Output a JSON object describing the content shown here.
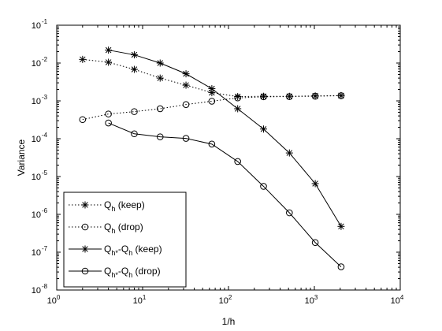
{
  "chart_data": {
    "type": "line",
    "xscale": "log",
    "yscale": "log",
    "xlim": [
      1,
      10000
    ],
    "ylim": [
      1e-08,
      0.1
    ],
    "xlabel": "1/h",
    "ylabel": "Variance",
    "grid": false,
    "legend_position": "bottom-left",
    "x_ticks": [
      {
        "base": "10",
        "exp": "0",
        "value": 1
      },
      {
        "base": "10",
        "exp": "1",
        "value": 10
      },
      {
        "base": "10",
        "exp": "2",
        "value": 100
      },
      {
        "base": "10",
        "exp": "3",
        "value": 1000
      },
      {
        "base": "10",
        "exp": "4",
        "value": 10000
      }
    ],
    "y_ticks": [
      {
        "base": "10",
        "exp": "-8",
        "value": 1e-08
      },
      {
        "base": "10",
        "exp": "-7",
        "value": 1e-07
      },
      {
        "base": "10",
        "exp": "-6",
        "value": 1e-06
      },
      {
        "base": "10",
        "exp": "-5",
        "value": 1e-05
      },
      {
        "base": "10",
        "exp": "-4",
        "value": 0.0001
      },
      {
        "base": "10",
        "exp": "-3",
        "value": 0.001
      },
      {
        "base": "10",
        "exp": "-2",
        "value": 0.01
      },
      {
        "base": "10",
        "exp": "-1",
        "value": 0.1
      }
    ],
    "series": [
      {
        "name": "Q_h (keep)",
        "legend_main": "Q",
        "legend_sub": "h",
        "legend_tail": " (keep)",
        "line": "dotted",
        "marker": "star",
        "color": "#000000",
        "x": [
          2,
          4,
          8,
          16,
          32,
          64,
          128,
          256,
          512,
          1024,
          2048
        ],
        "y": [
          0.0125,
          0.0105,
          0.0068,
          0.004,
          0.0026,
          0.00165,
          0.0013,
          0.00132,
          0.00132,
          0.00135,
          0.00138
        ]
      },
      {
        "name": "Q_h (drop)",
        "legend_main": "Q",
        "legend_sub": "h",
        "legend_tail": " (drop)",
        "line": "dotted",
        "marker": "circle",
        "color": "#000000",
        "x": [
          2,
          4,
          8,
          16,
          32,
          64,
          128,
          256,
          512,
          1024,
          2048
        ],
        "y": [
          0.00032,
          0.00045,
          0.00052,
          0.00062,
          0.0008,
          0.00098,
          0.0012,
          0.00128,
          0.0013,
          0.00133,
          0.00137
        ]
      },
      {
        "name": "Q_h*-Q_h (keep)",
        "legend_main": "Q",
        "legend_sub": "h*",
        "legend_mid": "-Q",
        "legend_sub2": "h",
        "legend_tail": " (keep)",
        "line": "solid",
        "marker": "star",
        "color": "#000000",
        "x": [
          4,
          8,
          16,
          32,
          64,
          128,
          256,
          512,
          1024,
          2048
        ],
        "y": [
          0.022,
          0.0165,
          0.01,
          0.0052,
          0.0021,
          0.00062,
          0.00018,
          4.2e-05,
          6.5e-06,
          4.8e-07
        ]
      },
      {
        "name": "Q_h*-Q_h (drop)",
        "legend_main": "Q",
        "legend_sub": "h*",
        "legend_mid": "-Q",
        "legend_sub2": "h",
        "legend_tail": " (drop)",
        "line": "solid",
        "marker": "circle",
        "color": "#000000",
        "x": [
          4,
          8,
          16,
          32,
          64,
          128,
          256,
          512,
          1024,
          2048
        ],
        "y": [
          0.00026,
          0.000135,
          0.000112,
          0.000102,
          7.2e-05,
          2.5e-05,
          5.5e-06,
          1.1e-06,
          1.8e-07,
          4.1e-08
        ]
      }
    ]
  }
}
